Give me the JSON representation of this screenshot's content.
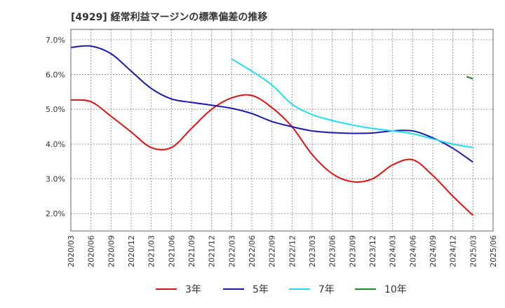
{
  "chart_data": {
    "type": "line",
    "title": "[4929]  経常利益マージンの標準偏差の推移",
    "xlabel": "",
    "ylabel": "",
    "x_ticks": [
      "2020/03",
      "2020/06",
      "2020/09",
      "2020/12",
      "2021/03",
      "2021/06",
      "2021/09",
      "2021/12",
      "2022/03",
      "2022/06",
      "2022/09",
      "2022/12",
      "2023/03",
      "2023/06",
      "2023/09",
      "2023/12",
      "2024/03",
      "2024/06",
      "2024/09",
      "2024/12",
      "2025/03",
      "2025/06"
    ],
    "y_ticks": [
      "2.0%",
      "3.0%",
      "4.0%",
      "5.0%",
      "6.0%",
      "7.0%"
    ],
    "ylim": [
      1.5,
      7.3
    ],
    "grid": true,
    "legend_position": "bottom",
    "series": [
      {
        "name": "3年",
        "color": "#dd1111",
        "values": [
          5.27,
          5.22,
          4.8,
          4.35,
          3.9,
          3.9,
          4.45,
          5.0,
          5.33,
          5.4,
          5.05,
          4.5,
          3.7,
          3.15,
          2.92,
          3.0,
          3.4,
          3.55,
          3.1,
          2.5,
          1.95,
          null
        ]
      },
      {
        "name": "5年",
        "color": "#1a1aaa",
        "values": [
          6.78,
          6.82,
          6.6,
          6.1,
          5.6,
          5.3,
          5.2,
          5.12,
          5.03,
          4.88,
          4.65,
          4.5,
          4.38,
          4.33,
          4.31,
          4.32,
          4.38,
          4.38,
          4.18,
          3.88,
          3.48,
          null
        ]
      },
      {
        "name": "7年",
        "color": "#22ddee",
        "values": [
          null,
          null,
          null,
          null,
          null,
          null,
          null,
          null,
          6.45,
          6.1,
          5.7,
          5.15,
          4.85,
          4.68,
          4.55,
          4.45,
          4.38,
          4.3,
          4.15,
          4.0,
          3.9,
          null
        ]
      },
      {
        "name": "10年",
        "color": "#228822",
        "values": [
          null,
          null,
          null,
          null,
          null,
          null,
          null,
          null,
          null,
          null,
          null,
          null,
          null,
          null,
          null,
          null,
          null,
          null,
          null,
          null,
          5.88,
          null
        ]
      }
    ]
  }
}
